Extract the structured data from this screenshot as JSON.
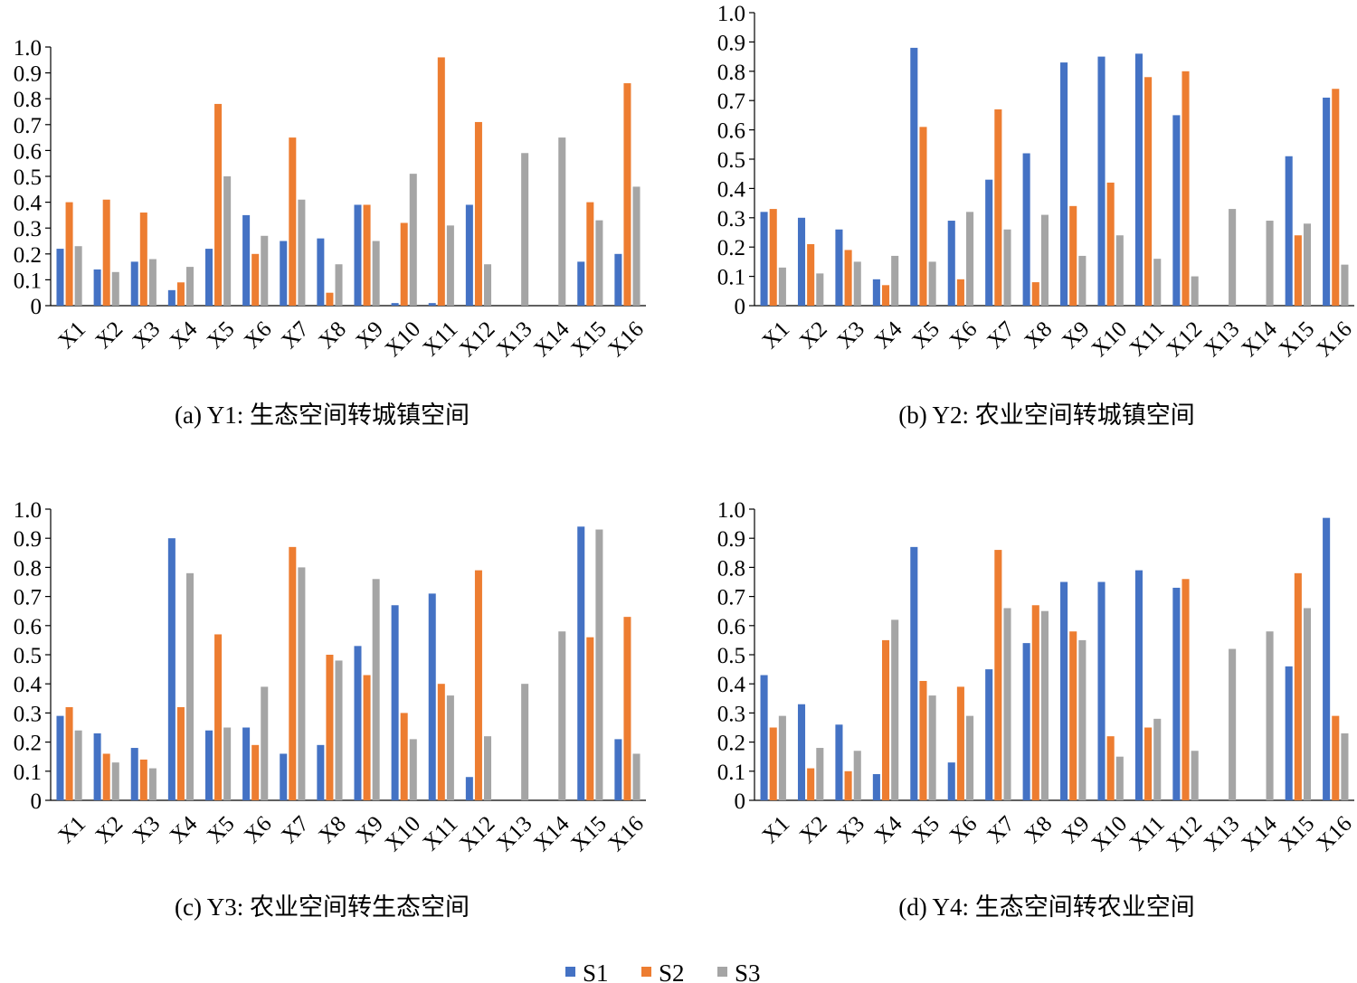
{
  "colors": {
    "S1": "#4472C4",
    "S2": "#ED7D31",
    "S3": "#A5A5A5"
  },
  "legend": [
    "S1",
    "S2",
    "S3"
  ],
  "chart_data": [
    {
      "type": "bar",
      "caption": "(a) Y1: 生态空间转城镇空间",
      "categories": [
        "X1",
        "X2",
        "X3",
        "X4",
        "X5",
        "X6",
        "X7",
        "X8",
        "X9",
        "X10",
        "X11",
        "X12",
        "X13",
        "X14",
        "X15",
        "X16"
      ],
      "ylim": [
        0,
        1.0
      ],
      "yticks": [
        "0",
        "0.1",
        "0.2",
        "0.3",
        "0.4",
        "0.5",
        "0.6",
        "0.7",
        "0.8",
        "0.9",
        "1.0"
      ],
      "series": [
        {
          "name": "S1",
          "values": [
            0.22,
            0.14,
            0.17,
            0.06,
            0.22,
            0.35,
            0.25,
            0.26,
            0.39,
            0.01,
            0.01,
            0.39,
            null,
            null,
            0.17,
            0.2
          ]
        },
        {
          "name": "S2",
          "values": [
            0.4,
            0.41,
            0.36,
            0.09,
            0.78,
            0.2,
            0.65,
            0.05,
            0.39,
            0.32,
            0.96,
            0.71,
            null,
            null,
            0.4,
            0.86
          ]
        },
        {
          "name": "S3",
          "values": [
            0.23,
            0.13,
            0.18,
            0.15,
            0.5,
            0.27,
            0.41,
            0.16,
            0.25,
            0.51,
            0.31,
            0.16,
            0.59,
            0.65,
            0.33,
            0.46
          ]
        }
      ]
    },
    {
      "type": "bar",
      "caption": "(b) Y2: 农业空间转城镇空间",
      "categories": [
        "X1",
        "X2",
        "X3",
        "X4",
        "X5",
        "X6",
        "X7",
        "X8",
        "X9",
        "X10",
        "X11",
        "X12",
        "X13",
        "X14",
        "X15",
        "X16"
      ],
      "ylim": [
        0,
        1.0
      ],
      "yticks": [
        "0",
        "0.1",
        "0.2",
        "0.3",
        "0.4",
        "0.5",
        "0.6",
        "0.7",
        "0.8",
        "0.9",
        "1.0"
      ],
      "series": [
        {
          "name": "S1",
          "values": [
            0.32,
            0.3,
            0.26,
            0.09,
            0.88,
            0.29,
            0.43,
            0.52,
            0.83,
            0.85,
            0.86,
            0.65,
            null,
            null,
            0.51,
            0.71
          ]
        },
        {
          "name": "S2",
          "values": [
            0.33,
            0.21,
            0.19,
            0.07,
            0.61,
            0.09,
            0.67,
            0.08,
            0.34,
            0.42,
            0.78,
            0.8,
            null,
            null,
            0.24,
            0.74
          ]
        },
        {
          "name": "S3",
          "values": [
            0.13,
            0.11,
            0.15,
            0.17,
            0.15,
            0.32,
            0.26,
            0.31,
            0.17,
            0.24,
            0.16,
            0.1,
            0.33,
            0.29,
            0.28,
            0.14
          ]
        }
      ]
    },
    {
      "type": "bar",
      "caption": "(c) Y3: 农业空间转生态空间",
      "categories": [
        "X1",
        "X2",
        "X3",
        "X4",
        "X5",
        "X6",
        "X7",
        "X8",
        "X9",
        "X10",
        "X11",
        "X12",
        "X13",
        "X14",
        "X15",
        "X16"
      ],
      "ylim": [
        0,
        1.0
      ],
      "yticks": [
        "0",
        "0.1",
        "0.2",
        "0.3",
        "0.4",
        "0.5",
        "0.6",
        "0.7",
        "0.8",
        "0.9",
        "1.0"
      ],
      "series": [
        {
          "name": "S1",
          "values": [
            0.29,
            0.23,
            0.18,
            0.9,
            0.24,
            0.25,
            0.16,
            0.19,
            0.53,
            0.67,
            0.71,
            0.08,
            null,
            null,
            0.94,
            0.21
          ]
        },
        {
          "name": "S2",
          "values": [
            0.32,
            0.16,
            0.14,
            0.32,
            0.57,
            0.19,
            0.87,
            0.5,
            0.43,
            0.3,
            0.4,
            0.79,
            null,
            null,
            0.56,
            0.63
          ]
        },
        {
          "name": "S3",
          "values": [
            0.24,
            0.13,
            0.11,
            0.78,
            0.25,
            0.39,
            0.8,
            0.48,
            0.76,
            0.21,
            0.36,
            0.22,
            0.4,
            0.58,
            0.93,
            0.16
          ]
        }
      ]
    },
    {
      "type": "bar",
      "caption": "(d) Y4: 生态空间转农业空间",
      "categories": [
        "X1",
        "X2",
        "X3",
        "X4",
        "X5",
        "X6",
        "X7",
        "X8",
        "X9",
        "X10",
        "X11",
        "X12",
        "X13",
        "X14",
        "X15",
        "X16"
      ],
      "ylim": [
        0,
        1.0
      ],
      "yticks": [
        "0",
        "0.1",
        "0.2",
        "0.3",
        "0.4",
        "0.5",
        "0.6",
        "0.7",
        "0.8",
        "0.9",
        "1.0"
      ],
      "series": [
        {
          "name": "S1",
          "values": [
            0.43,
            0.33,
            0.26,
            0.09,
            0.87,
            0.13,
            0.45,
            0.54,
            0.75,
            0.75,
            0.79,
            0.73,
            null,
            null,
            0.46,
            0.97
          ]
        },
        {
          "name": "S2",
          "values": [
            0.25,
            0.11,
            0.1,
            0.55,
            0.41,
            0.39,
            0.86,
            0.67,
            0.58,
            0.22,
            0.25,
            0.76,
            null,
            null,
            0.78,
            0.29
          ]
        },
        {
          "name": "S3",
          "values": [
            0.29,
            0.18,
            0.17,
            0.62,
            0.36,
            0.29,
            0.66,
            0.65,
            0.55,
            0.15,
            0.28,
            0.17,
            0.52,
            0.58,
            0.66,
            0.23
          ]
        }
      ]
    }
  ]
}
